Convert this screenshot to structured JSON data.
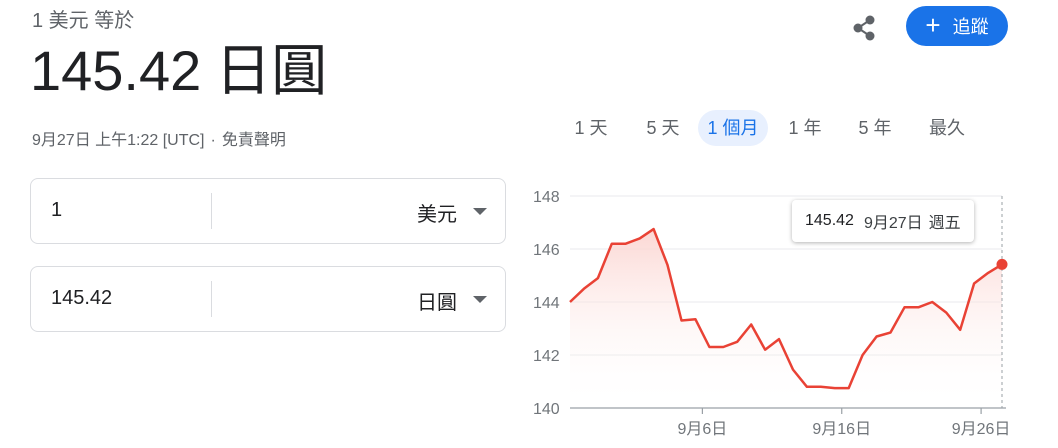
{
  "header": {
    "subtitle": "1 美元 等於",
    "value": "145.42",
    "unit": "日圓",
    "timestamp": "9月27日 上午1:22 [UTC]",
    "separator": "·",
    "disclaimer": "免責聲明",
    "follow_label": "追蹤"
  },
  "icons": {
    "share": "share-icon",
    "plus": "plus-icon",
    "caret": "chevron-down-icon"
  },
  "colors": {
    "accent": "#1a73e8",
    "line": "#e94235",
    "area_top": "#fbd3cf"
  },
  "range_tabs": [
    {
      "label": "1 天",
      "active": false
    },
    {
      "label": "5 天",
      "active": false
    },
    {
      "label": "1 個月",
      "active": true
    },
    {
      "label": "1 年",
      "active": false
    },
    {
      "label": "5 年",
      "active": false
    },
    {
      "label": "最久",
      "active": false
    }
  ],
  "converter": {
    "from": {
      "amount": "1",
      "currency": "美元"
    },
    "to": {
      "amount": "145.42",
      "currency": "日圓"
    }
  },
  "tooltip": {
    "value": "145.42",
    "date": "9月27日",
    "weekday": "週五"
  },
  "chart_data": {
    "type": "line",
    "title": "",
    "xlabel": "",
    "ylabel": "",
    "ylim": [
      140,
      148
    ],
    "yticks": [
      140,
      142,
      144,
      146,
      148
    ],
    "x_tick_labels": [
      "9月6日",
      "9月16日",
      "9月26日"
    ],
    "x_tick_index": [
      9.5,
      19.5,
      29.5
    ],
    "grid": true,
    "series": [
      {
        "values": [
          144.0,
          144.5,
          144.9,
          146.2,
          146.2,
          146.4,
          146.75,
          145.4,
          143.3,
          143.35,
          142.3,
          142.3,
          142.5,
          143.15,
          142.2,
          142.6,
          141.45,
          140.8,
          140.8,
          140.75,
          140.75,
          142.0,
          142.7,
          142.85,
          143.8,
          143.8,
          144.0,
          143.6,
          142.95,
          144.7,
          145.1,
          145.42
        ]
      }
    ]
  }
}
